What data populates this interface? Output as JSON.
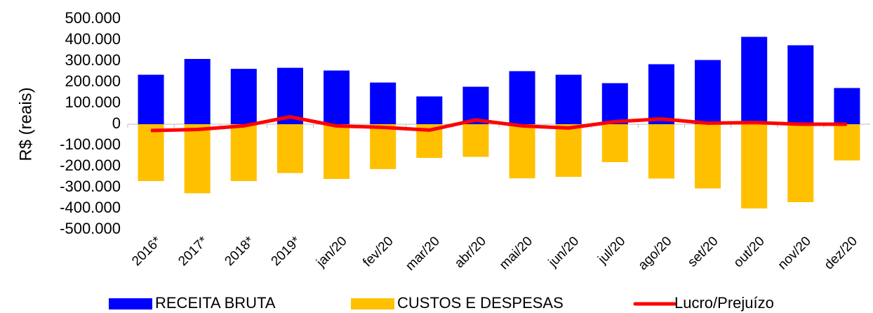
{
  "chart_data": {
    "type": "bar",
    "y_label": "R$ (reais)",
    "categories": [
      "2016*",
      "2017*",
      "2018*",
      "2019*",
      "jan/20",
      "fev/20",
      "mar/20",
      "abr/20",
      "mai/20",
      "jun/20",
      "jul/20",
      "ago/20",
      "set/20",
      "out/20",
      "nov/20",
      "dez/20"
    ],
    "series": [
      {
        "name": "RECEITA BRUTA",
        "type": "bar",
        "color": "#0000ff",
        "values": [
          235000,
          310000,
          263000,
          268000,
          255000,
          198000,
          132000,
          178000,
          252000,
          235000,
          195000,
          285000,
          305000,
          415000,
          375000,
          172000
        ]
      },
      {
        "name": "CUSTOS E DESPESAS",
        "type": "bar",
        "color": "#ffc000",
        "values": [
          -270000,
          -328000,
          -270000,
          -232000,
          -260000,
          -213000,
          -160000,
          -155000,
          -257000,
          -250000,
          -180000,
          -258000,
          -305000,
          -400000,
          -370000,
          -172000
        ]
      },
      {
        "name": "Lucro/Prejuízo",
        "type": "line",
        "color": "#ff0000",
        "values": [
          -30000,
          -25000,
          -8000,
          35000,
          -8000,
          -15000,
          -28000,
          20000,
          -8000,
          -18000,
          12000,
          25000,
          5000,
          8000,
          0,
          0
        ]
      }
    ],
    "ylim": [
      -500000,
      500000
    ],
    "yticks": [
      {
        "value": 500000,
        "label": "500.000"
      },
      {
        "value": 400000,
        "label": "400.000"
      },
      {
        "value": 300000,
        "label": "300.000"
      },
      {
        "value": 200000,
        "label": "200.000"
      },
      {
        "value": 100000,
        "label": "100.000"
      },
      0,
      {
        "value": -100000,
        "label": "-100.000"
      },
      {
        "value": -200000,
        "label": "-200.000"
      },
      {
        "value": -300000,
        "label": "-300.000"
      },
      {
        "value": -400000,
        "label": "-400.000"
      },
      {
        "value": -500000,
        "label": "-500.000"
      }
    ],
    "negative_tick_color": "#ff0000",
    "grid": false,
    "legend": "bottom"
  }
}
